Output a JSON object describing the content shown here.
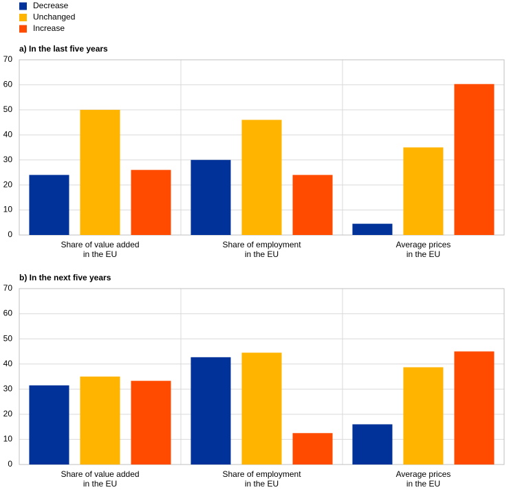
{
  "chart_data": [
    {
      "type": "bar",
      "title": "a) In the last five years",
      "categories": [
        [
          "Share of value added",
          "in the EU"
        ],
        [
          "Share of employment",
          "in the EU"
        ],
        [
          "Average prices",
          "in the EU"
        ]
      ],
      "series": [
        {
          "name": "Decrease",
          "color": "#003299",
          "values": [
            24,
            30,
            4.5
          ]
        },
        {
          "name": "Unchanged",
          "color": "#ffb400",
          "values": [
            50,
            46,
            35
          ]
        },
        {
          "name": "Increase",
          "color": "#ff4b00",
          "values": [
            26,
            24,
            60.3
          ]
        }
      ],
      "ylim": [
        0,
        70
      ],
      "yticks": [
        0,
        10,
        20,
        30,
        40,
        50,
        60,
        70
      ],
      "grid": true
    },
    {
      "type": "bar",
      "title": "b) In the next five years",
      "categories": [
        [
          "Share of value added",
          "in the EU"
        ],
        [
          "Share of employment",
          "in the EU"
        ],
        [
          "Average prices",
          "in the EU"
        ]
      ],
      "series": [
        {
          "values": [
            31.5,
            42.7,
            16
          ]
        },
        {
          "values": [
            35,
            44.5,
            38.7
          ]
        },
        {
          "values": [
            33.3,
            12.5,
            45
          ]
        }
      ],
      "ylim": [
        0,
        70
      ],
      "yticks": [
        0,
        10,
        20,
        30,
        40,
        50,
        60,
        70
      ],
      "grid": true
    }
  ]
}
